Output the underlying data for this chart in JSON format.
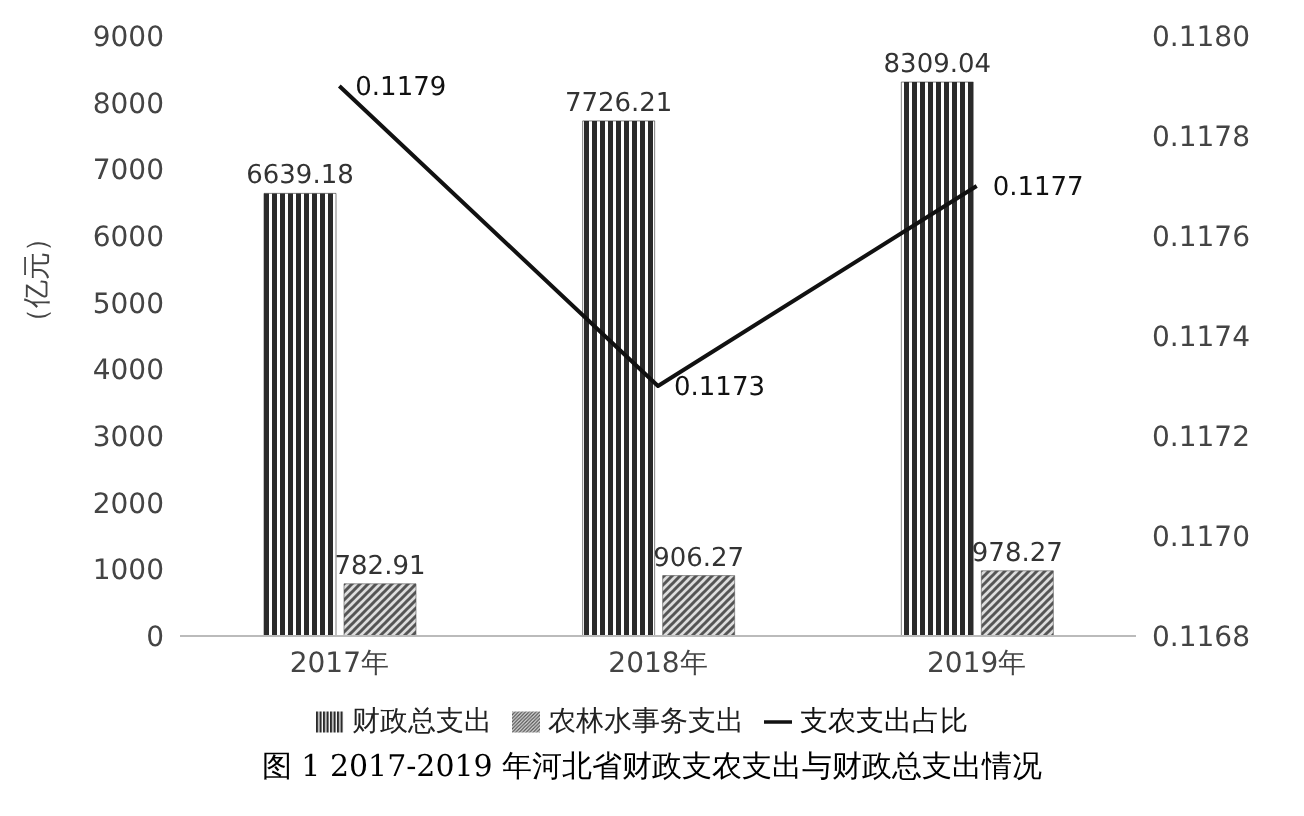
{
  "chart_data": {
    "type": "bar",
    "title": "图 1 2017-2019 年河北省财政支农支出与财政总支出情况",
    "ylabel": "（亿元）",
    "categories": [
      "2017年",
      "2018年",
      "2019年"
    ],
    "series": [
      {
        "name": "财政总支出",
        "color": "#2b2b2b",
        "values": [
          6639.18,
          7726.21,
          8309.04
        ]
      },
      {
        "name": "农林水事务支出",
        "color": "#555555",
        "values": [
          782.91,
          906.27,
          978.27
        ]
      },
      {
        "name": "支农支出占比",
        "type": "line",
        "axis": "y2",
        "color": "#111111",
        "values": [
          0.1179,
          0.1173,
          0.1177
        ]
      }
    ],
    "ylim": [
      0,
      9000
    ],
    "yticks": [
      0,
      1000,
      2000,
      3000,
      4000,
      5000,
      6000,
      7000,
      8000,
      9000
    ],
    "y2lim": [
      0.1168,
      0.118
    ],
    "y2ticks": [
      0.1168,
      {
        "value": 0.117,
        "label": "0.1170"
      },
      0.1172,
      0.1174,
      0.1176,
      0.1178,
      {
        "value": 0.118,
        "label": "0.1180"
      }
    ],
    "data_labels": true,
    "grid": false,
    "legend": "bottom",
    "marker": "none",
    "line_style": "solid"
  }
}
